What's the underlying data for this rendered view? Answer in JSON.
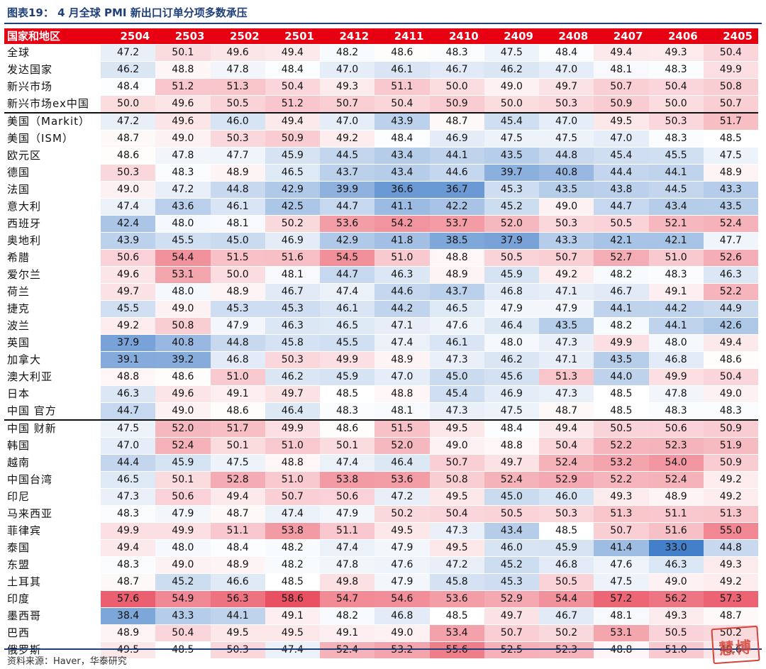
{
  "title": "图表19：  4 月全球 PMI 新出口订单分项多数承压",
  "source": "资料来源：Haver，华泰研究",
  "watermark": "慧博",
  "colors": {
    "header_bg": "#e60012",
    "low": "#3a78c6",
    "mid": "#ffffff",
    "high": "#e8485a",
    "rule": "#1f3f7a"
  },
  "chart_data": {
    "type": "heatmap",
    "corner_label": "国家和地区",
    "columns": [
      "2504",
      "2503",
      "2502",
      "2501",
      "2412",
      "2411",
      "2410",
      "2409",
      "2408",
      "2407",
      "2406",
      "2405"
    ],
    "color_scale": {
      "min": 33.0,
      "center": 48.5,
      "max": 58.6
    },
    "group_breaks_before": [
      4,
      22
    ],
    "rows": [
      {
        "name": "全球",
        "values": [
          47.2,
          50.1,
          49.6,
          49.4,
          48.2,
          48.6,
          48.3,
          47.5,
          48.4,
          49.4,
          49.3,
          50.4
        ]
      },
      {
        "name": "发达国家",
        "values": [
          46.2,
          48.8,
          47.8,
          48.4,
          47.0,
          46.1,
          46.7,
          46.2,
          47.0,
          48.1,
          48.3,
          49.9
        ]
      },
      {
        "name": "新兴市场",
        "values": [
          48.4,
          51.2,
          51.3,
          50.4,
          49.3,
          51.1,
          50.0,
          49.0,
          49.7,
          50.7,
          50.4,
          50.8
        ]
      },
      {
        "name": "新兴市场ex中国",
        "values": [
          50.0,
          49.6,
          50.5,
          51.2,
          50.7,
          50.4,
          50.9,
          50.0,
          50.3,
          50.9,
          50.0,
          50.7
        ]
      },
      {
        "name": "美国（Markit）",
        "values": [
          47.2,
          49.6,
          46.0,
          49.4,
          47.0,
          43.9,
          48.7,
          45.4,
          47.0,
          49.5,
          50.3,
          51.7
        ]
      },
      {
        "name": "美国（ISM）",
        "values": [
          48.7,
          49.0,
          50.3,
          50.9,
          49.2,
          48.4,
          46.9,
          47.5,
          47.5,
          47.0,
          48.3,
          48.5
        ]
      },
      {
        "name": "欧元区",
        "values": [
          48.6,
          47.8,
          47.7,
          45.9,
          44.5,
          43.4,
          44.1,
          43.5,
          44.8,
          45.4,
          45.5,
          47.5
        ]
      },
      {
        "name": "德国",
        "values": [
          50.3,
          48.3,
          48.9,
          46.5,
          43.7,
          43.4,
          44.6,
          39.7,
          40.8,
          44.4,
          44.1,
          48.9
        ]
      },
      {
        "name": "法国",
        "values": [
          49.0,
          47.2,
          44.8,
          42.9,
          39.9,
          36.6,
          36.7,
          45.3,
          43.5,
          43.8,
          44.5,
          43.3
        ]
      },
      {
        "name": "意大利",
        "values": [
          47.4,
          43.6,
          46.1,
          42.5,
          44.7,
          41.1,
          42.2,
          45.2,
          49.0,
          44.7,
          43.4,
          43.5
        ]
      },
      {
        "name": "西班牙",
        "values": [
          42.4,
          48.0,
          48.1,
          50.2,
          53.6,
          54.2,
          53.7,
          52.0,
          50.3,
          50.5,
          52.1,
          52.4
        ]
      },
      {
        "name": "奥地利",
        "values": [
          43.9,
          45.5,
          45.0,
          46.9,
          42.9,
          41.8,
          38.5,
          37.9,
          43.3,
          42.1,
          42.1,
          47.7
        ]
      },
      {
        "name": "希腊",
        "values": [
          50.6,
          54.4,
          51.5,
          51.6,
          54.5,
          51.0,
          48.8,
          50.5,
          50.7,
          52.7,
          51.0,
          52.6
        ]
      },
      {
        "name": "爱尔兰",
        "values": [
          49.6,
          53.1,
          50.0,
          48.1,
          44.7,
          46.3,
          48.9,
          45.9,
          49.2,
          48.2,
          48.3,
          46.3
        ]
      },
      {
        "name": "荷兰",
        "values": [
          49.7,
          48.0,
          48.9,
          46.7,
          47.4,
          44.6,
          43.7,
          46.8,
          47.1,
          46.7,
          49.1,
          52.2
        ]
      },
      {
        "name": "捷克",
        "values": [
          45.5,
          49.0,
          45.3,
          45.3,
          46.1,
          44.2,
          46.5,
          47.9,
          47.9,
          44.1,
          44.2,
          44.9
        ]
      },
      {
        "name": "波兰",
        "values": [
          49.2,
          50.8,
          47.9,
          46.3,
          46.5,
          47.1,
          47.6,
          46.4,
          43.5,
          48.2,
          44.1,
          42.6
        ]
      },
      {
        "name": "英国",
        "values": [
          37.9,
          40.8,
          44.8,
          45.8,
          45.5,
          47.4,
          46.1,
          48.0,
          47.3,
          49.9,
          48.0,
          49.4
        ]
      },
      {
        "name": "加拿大",
        "values": [
          39.1,
          39.2,
          46.8,
          50.3,
          49.9,
          48.9,
          47.3,
          46.2,
          47.1,
          43.5,
          46.8,
          48.6
        ]
      },
      {
        "name": "澳大利亚",
        "values": [
          48.8,
          48.6,
          51.0,
          46.2,
          45.9,
          47.0,
          45.0,
          45.6,
          51.3,
          44.0,
          49.9,
          50.4
        ]
      },
      {
        "name": "日本",
        "values": [
          46.3,
          49.6,
          49.1,
          49.7,
          48.5,
          48.8,
          45.4,
          46.9,
          47.3,
          48.5,
          47.8,
          49.0
        ]
      },
      {
        "name": "中国 官方",
        "values": [
          44.7,
          49.0,
          48.6,
          46.4,
          48.3,
          48.1,
          47.3,
          47.5,
          48.7,
          48.5,
          48.3,
          48.3
        ]
      },
      {
        "name": "中国 财新",
        "values": [
          47.5,
          52.0,
          51.7,
          49.9,
          48.6,
          51.5,
          49.5,
          48.4,
          49.4,
          50.5,
          50.6,
          50.9
        ]
      },
      {
        "name": "韩国",
        "values": [
          47.0,
          52.4,
          50.1,
          51.0,
          50.1,
          52.0,
          49.0,
          48.8,
          50.4,
          52.2,
          52.3,
          51.9
        ]
      },
      {
        "name": "越南",
        "values": [
          44.4,
          45.9,
          47.5,
          48.8,
          47.4,
          46.4,
          50.7,
          49.7,
          52.4,
          53.2,
          54.0,
          50.9
        ]
      },
      {
        "name": "中国台湾",
        "values": [
          46.5,
          50.1,
          52.8,
          51.0,
          53.8,
          53.6,
          50.8,
          52.4,
          52.9,
          52.2,
          52.4,
          49.2
        ]
      },
      {
        "name": "印尼",
        "values": [
          47.3,
          50.6,
          49.4,
          50.7,
          50.6,
          47.2,
          49.5,
          45.0,
          46.0,
          49.3,
          48.9,
          49.2
        ]
      },
      {
        "name": "马来西亚",
        "values": [
          48.3,
          47.9,
          48.7,
          47.4,
          47.9,
          50.2,
          50.4,
          50.5,
          50.3,
          51.3,
          51.1,
          51.3
        ]
      },
      {
        "name": "菲律宾",
        "values": [
          49.9,
          49.9,
          51.1,
          53.8,
          51.1,
          49.5,
          47.3,
          43.4,
          48.5,
          50.7,
          51.6,
          55.0
        ]
      },
      {
        "name": "泰国",
        "values": [
          49.4,
          48.0,
          48.4,
          48.2,
          47.4,
          47.9,
          49.5,
          46.0,
          45.9,
          41.4,
          33.0,
          44.8
        ]
      },
      {
        "name": "东盟",
        "values": [
          48.3,
          49.0,
          48.9,
          48.2,
          47.8,
          47.6,
          47.2,
          45.2,
          46.8,
          47.6,
          46.3,
          49.3
        ]
      },
      {
        "name": "土耳其",
        "values": [
          48.7,
          45.2,
          46.6,
          48.5,
          49.8,
          47.9,
          45.8,
          45.3,
          50.5,
          47.5,
          49.0,
          49.2
        ]
      },
      {
        "name": "印度",
        "values": [
          57.6,
          54.9,
          56.3,
          58.6,
          54.7,
          54.6,
          53.6,
          52.9,
          54.4,
          57.2,
          56.2,
          57.3
        ]
      },
      {
        "name": "墨西哥",
        "values": [
          38.4,
          43.3,
          44.1,
          49.1,
          48.2,
          46.8,
          48.5,
          49.7,
          46.7,
          48.1,
          49.3,
          48.7
        ]
      },
      {
        "name": "巴西",
        "values": [
          48.9,
          50.4,
          49.5,
          49.5,
          49.1,
          49.0,
          53.4,
          50.7,
          50.2,
          53.1,
          50.5,
          50.2
        ]
      },
      {
        "name": "俄罗斯",
        "values": [
          49.5,
          48.5,
          50.3,
          47.4,
          52.4,
          53.2,
          55.6,
          52.5,
          52.3,
          48.8,
          51.0,
          49.6
        ]
      }
    ]
  }
}
